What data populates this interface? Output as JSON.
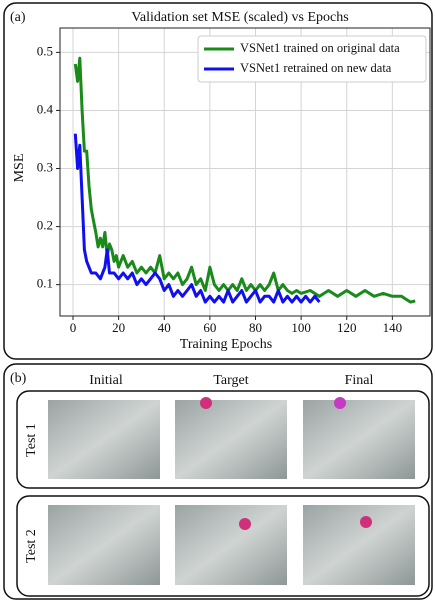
{
  "chart_data": {
    "type": "line",
    "panel_label": "(a)",
    "title": "Validation set MSE (scaled) vs Epochs",
    "x_label": "Training Epochs",
    "y_label": "MSE",
    "xlim": [
      -5.7,
      156.5
    ],
    "ylim": [
      0.046,
      0.542
    ],
    "xticks": [
      0,
      20,
      40,
      60,
      80,
      100,
      120,
      140
    ],
    "yticks": [
      0.1,
      0.2,
      0.3,
      0.4,
      0.5
    ],
    "grid": true,
    "legend": "upper right",
    "series": [
      {
        "name": "VSNet1 trained on original data",
        "color": "#1a8a1a",
        "x": [
          1,
          2,
          3,
          4,
          5,
          6,
          7,
          8,
          9,
          10,
          11,
          12,
          13,
          14,
          15,
          16,
          17,
          18,
          19,
          20,
          22,
          24,
          26,
          28,
          30,
          32,
          34,
          36,
          38,
          40,
          42,
          44,
          46,
          48,
          50,
          52,
          54,
          56,
          58,
          60,
          62,
          64,
          66,
          68,
          70,
          72,
          74,
          76,
          78,
          80,
          82,
          84,
          86,
          88,
          90,
          92,
          94,
          96,
          98,
          100,
          104,
          108,
          112,
          116,
          120,
          124,
          128,
          132,
          136,
          140,
          144,
          146,
          148,
          150
        ],
        "values": [
          0.48,
          0.45,
          0.49,
          0.4,
          0.33,
          0.33,
          0.27,
          0.23,
          0.21,
          0.19,
          0.165,
          0.18,
          0.165,
          0.19,
          0.15,
          0.17,
          0.16,
          0.14,
          0.15,
          0.13,
          0.15,
          0.13,
          0.14,
          0.12,
          0.13,
          0.12,
          0.13,
          0.12,
          0.15,
          0.11,
          0.12,
          0.11,
          0.12,
          0.1,
          0.11,
          0.13,
          0.1,
          0.11,
          0.09,
          0.13,
          0.1,
          0.09,
          0.1,
          0.09,
          0.1,
          0.09,
          0.11,
          0.09,
          0.1,
          0.09,
          0.1,
          0.09,
          0.1,
          0.12,
          0.09,
          0.1,
          0.09,
          0.085,
          0.09,
          0.085,
          0.09,
          0.08,
          0.09,
          0.08,
          0.09,
          0.08,
          0.09,
          0.08,
          0.085,
          0.08,
          0.08,
          0.075,
          0.07,
          0.072
        ]
      },
      {
        "name": "VSNet1 retrained on new data",
        "color": "#1010ee",
        "x": [
          1,
          2,
          3,
          4,
          5,
          6,
          7,
          8,
          10,
          12,
          14,
          15,
          16,
          18,
          20,
          22,
          24,
          26,
          28,
          30,
          32,
          34,
          36,
          38,
          40,
          42,
          44,
          46,
          48,
          50,
          52,
          54,
          56,
          58,
          60,
          62,
          64,
          66,
          68,
          70,
          72,
          74,
          76,
          78,
          80,
          82,
          84,
          86,
          88,
          90,
          92,
          94,
          96,
          98,
          100,
          102,
          104,
          106,
          108
        ],
        "values": [
          0.36,
          0.3,
          0.34,
          0.25,
          0.16,
          0.14,
          0.13,
          0.12,
          0.12,
          0.11,
          0.13,
          0.16,
          0.12,
          0.12,
          0.11,
          0.12,
          0.11,
          0.12,
          0.1,
          0.11,
          0.1,
          0.11,
          0.12,
          0.11,
          0.09,
          0.1,
          0.08,
          0.09,
          0.08,
          0.09,
          0.1,
          0.08,
          0.09,
          0.07,
          0.08,
          0.07,
          0.08,
          0.07,
          0.09,
          0.07,
          0.08,
          0.09,
          0.07,
          0.08,
          0.09,
          0.07,
          0.08,
          0.08,
          0.07,
          0.09,
          0.07,
          0.08,
          0.07,
          0.08,
          0.07,
          0.08,
          0.07,
          0.08,
          0.07
        ]
      }
    ]
  },
  "panel_b": {
    "panel_label": "(b)",
    "columns": [
      "Initial",
      "Target",
      "Final"
    ],
    "rows": [
      "Test 1",
      "Test 2"
    ]
  }
}
